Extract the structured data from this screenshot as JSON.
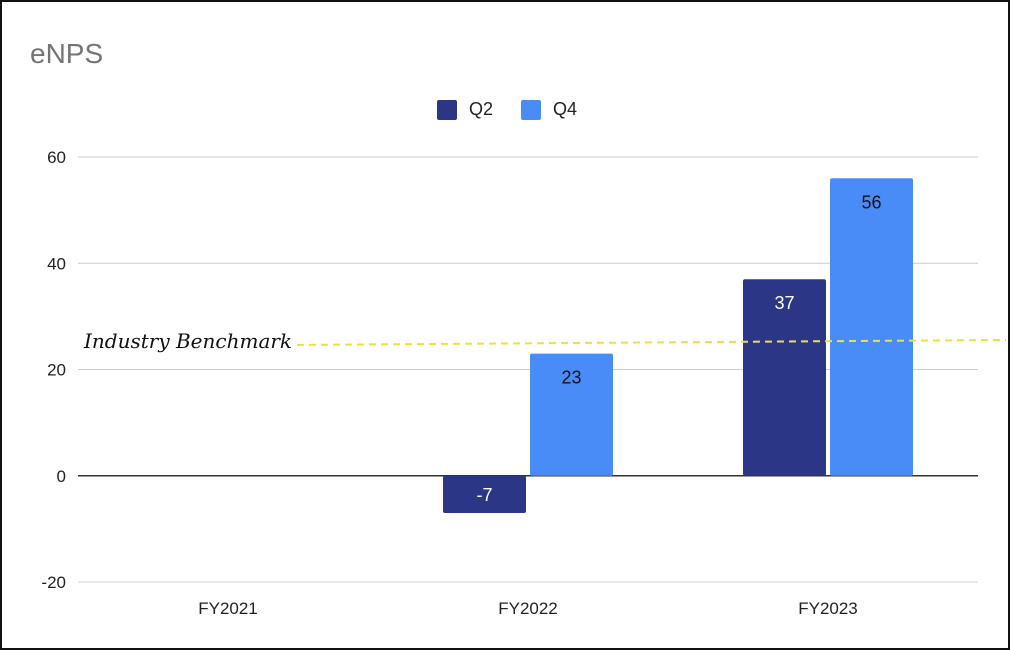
{
  "chart_data": {
    "type": "bar",
    "title": "eNPS",
    "categories": [
      "FY2021",
      "FY2022",
      "FY2023"
    ],
    "series": [
      {
        "name": "Q2",
        "color": "#2b3686",
        "label_color": "#ffffff",
        "values": [
          null,
          -7,
          37
        ]
      },
      {
        "name": "Q4",
        "color": "#4a8cf7",
        "label_color": "#111111",
        "values": [
          null,
          23,
          56
        ]
      }
    ],
    "ylim": [
      -20,
      60
    ],
    "yticks": [
      -20,
      0,
      20,
      40,
      60
    ],
    "grid": true,
    "legend_position": "top-center",
    "annotations": [
      {
        "text": "Industry Benchmark",
        "value": 25,
        "style": "dashed",
        "color": "#f2e03a"
      }
    ],
    "xlabel": "",
    "ylabel": ""
  }
}
